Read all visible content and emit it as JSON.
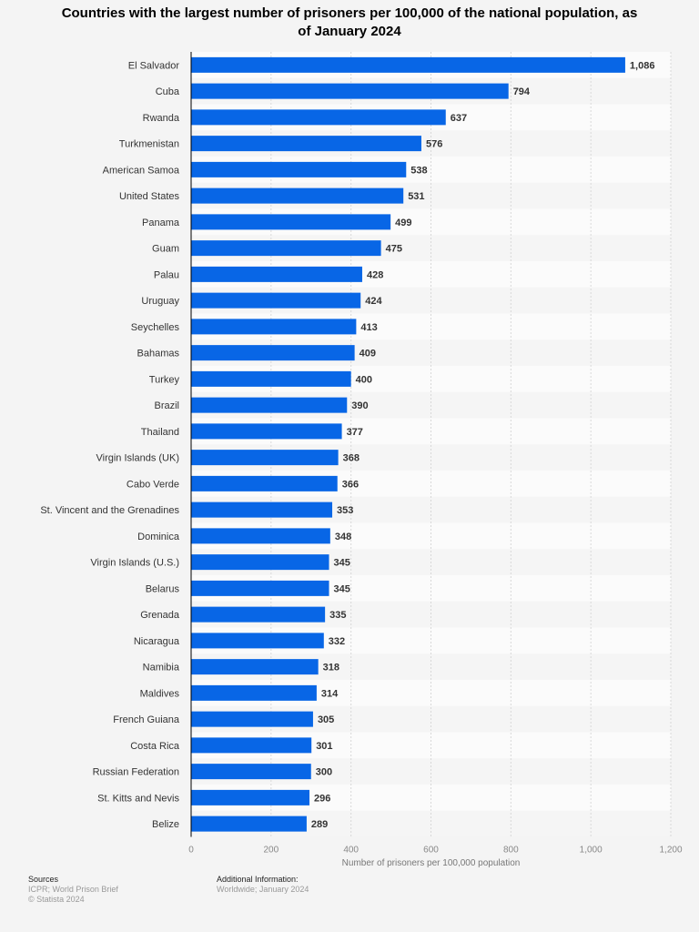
{
  "chart_data": {
    "type": "bar",
    "orientation": "horizontal",
    "title": "Countries with the largest number of prisoners per 100,000 of the national population, as of January 2024",
    "xlabel": "Number of prisoners per 100,000 population",
    "ylabel": "",
    "xlim": [
      0,
      1200
    ],
    "ticks": [
      "0",
      "200",
      "400",
      "600",
      "800",
      "1,000",
      "1,200"
    ],
    "tick_values": [
      0,
      200,
      400,
      600,
      800,
      1000,
      1200
    ],
    "grid": true,
    "bar_color": "#0866e6",
    "categories": [
      "El Salvador",
      "Cuba",
      "Rwanda",
      "Turkmenistan",
      "American Samoa",
      "United States",
      "Panama",
      "Guam",
      "Palau",
      "Uruguay",
      "Seychelles",
      "Bahamas",
      "Turkey",
      "Brazil",
      "Thailand",
      "Virgin Islands (UK)",
      "Cabo Verde",
      "St. Vincent and the Grenadines",
      "Dominica",
      "Virgin Islands (U.S.)",
      "Belarus",
      "Grenada",
      "Nicaragua",
      "Namibia",
      "Maldives",
      "French Guiana",
      "Costa Rica",
      "Russian Federation",
      "St. Kitts and Nevis",
      "Belize"
    ],
    "values": [
      1086,
      794,
      637,
      576,
      538,
      531,
      499,
      475,
      428,
      424,
      413,
      409,
      400,
      390,
      377,
      368,
      366,
      353,
      348,
      345,
      345,
      335,
      332,
      318,
      314,
      305,
      301,
      300,
      296,
      289
    ],
    "value_labels": [
      "1,086",
      "794",
      "637",
      "576",
      "538",
      "531",
      "499",
      "475",
      "428",
      "424",
      "413",
      "409",
      "400",
      "390",
      "377",
      "368",
      "366",
      "353",
      "348",
      "345",
      "345",
      "335",
      "332",
      "318",
      "314",
      "305",
      "301",
      "300",
      "296",
      "289"
    ]
  },
  "footer": {
    "sources_heading": "Sources",
    "sources_line1": "ICPR; World Prison Brief",
    "sources_line2": "© Statista 2024",
    "info_heading": "Additional Information:",
    "info_line1": "Worldwide; January 2024"
  }
}
